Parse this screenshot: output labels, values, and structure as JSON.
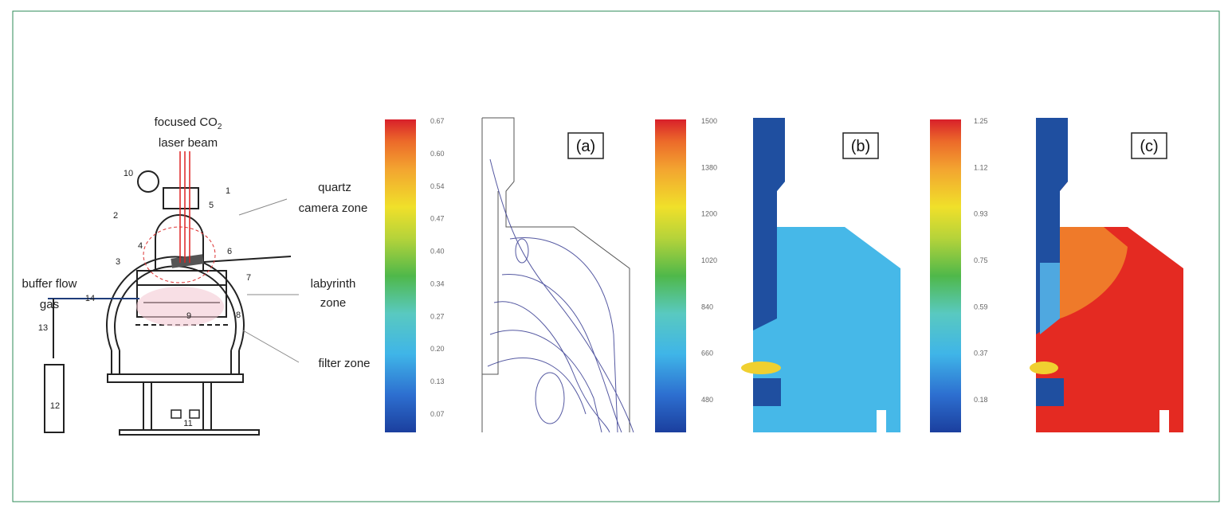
{
  "schematic": {
    "laser_beam": {
      "text": "focused CO",
      "sub": "2",
      "line2": "laser beam"
    },
    "quartz": "quartz",
    "camera_zone": "camera zone",
    "labyrinth_zone": [
      "labyrinth",
      "zone"
    ],
    "buffer_gas": [
      "buffer flow",
      "gas"
    ],
    "filter_zone": "filter zone",
    "part_numbers": [
      "1",
      "2",
      "3",
      "4",
      "5",
      "6",
      "7",
      "8",
      "9",
      "10",
      "11",
      "12",
      "13",
      "14"
    ]
  },
  "panels": [
    {
      "label": "(a)",
      "scale": [
        "0.67",
        "0.60",
        "0.54",
        "0.47",
        "0.40",
        "0.34",
        "0.27",
        "0.20",
        "0.13",
        "0.07"
      ]
    },
    {
      "label": "(b)",
      "scale": [
        "1500",
        "1380",
        "1200",
        "1020",
        "840",
        "660",
        "480"
      ]
    },
    {
      "label": "(c)",
      "scale": [
        "1.25",
        "1.12",
        "0.93",
        "0.75",
        "0.59",
        "0.37",
        "0.18"
      ]
    }
  ]
}
